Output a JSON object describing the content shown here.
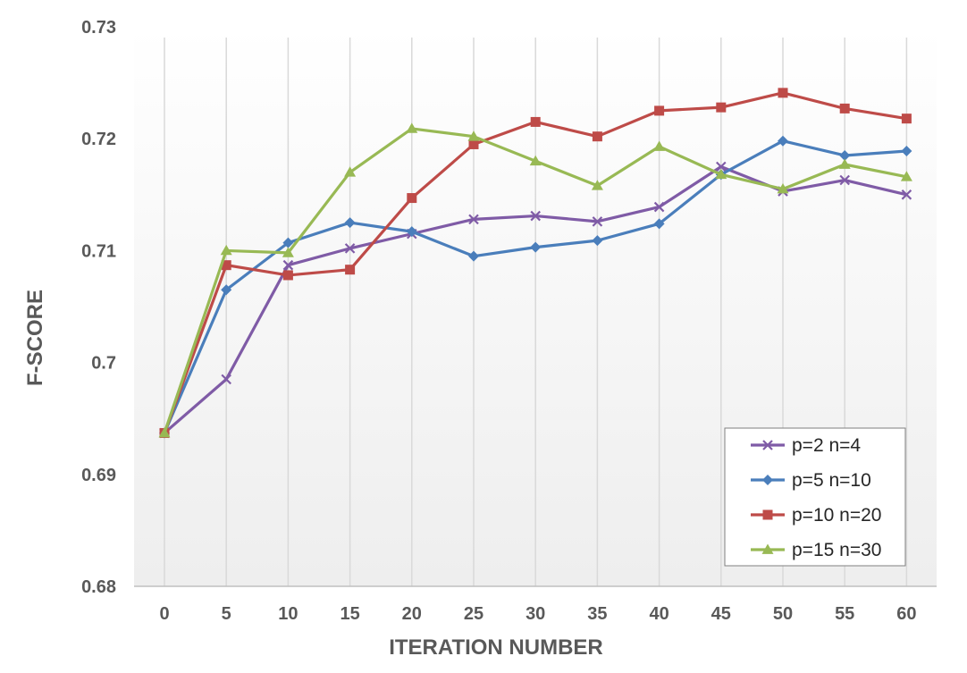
{
  "chart_data": {
    "type": "line",
    "title": "",
    "xlabel": "ITERATION NUMBER",
    "ylabel": "F-SCORE",
    "x": [
      0,
      5,
      10,
      15,
      20,
      25,
      30,
      35,
      40,
      45,
      50,
      55,
      60
    ],
    "x_tick_labels": [
      "0",
      "5",
      "10",
      "15",
      "20",
      "25",
      "30",
      "35",
      "40",
      "45",
      "50",
      "55",
      "60"
    ],
    "ylim": [
      0.68,
      0.73
    ],
    "y_ticks": [
      0.68,
      0.69,
      0.7,
      0.71,
      0.72,
      0.73
    ],
    "y_tick_labels": [
      "0.68",
      "0.69",
      "0.7",
      "0.71",
      "0.72",
      "0.73"
    ],
    "grid": "vertical",
    "legend_position": "bottom-right",
    "series": [
      {
        "name": "p=2 n=4",
        "color": "#7F5BA6",
        "marker": "x",
        "values": [
          0.6937,
          0.6985,
          0.7087,
          0.7102,
          0.7115,
          0.7128,
          0.7131,
          0.7126,
          0.7139,
          0.7175,
          0.7153,
          0.7163,
          0.715
        ]
      },
      {
        "name": "p=5 n=10",
        "color": "#4A7EBB",
        "marker": "diamond",
        "values": [
          0.6937,
          0.7065,
          0.7107,
          0.7125,
          0.7117,
          0.7095,
          0.7103,
          0.7109,
          0.7124,
          0.7168,
          0.7198,
          0.7185,
          0.7189
        ]
      },
      {
        "name": "p=10 n=20",
        "color": "#BE4B48",
        "marker": "square",
        "values": [
          0.6937,
          0.7087,
          0.7078,
          0.7083,
          0.7147,
          0.7195,
          0.7215,
          0.7202,
          0.7225,
          0.7228,
          0.7241,
          0.7227,
          0.7218
        ]
      },
      {
        "name": "p=15 n=30",
        "color": "#98B954",
        "marker": "triangle",
        "values": [
          0.6937,
          0.71,
          0.7098,
          0.717,
          0.7209,
          0.7202,
          0.718,
          0.7158,
          0.7193,
          0.7168,
          0.7155,
          0.7177,
          0.7166
        ]
      }
    ]
  }
}
